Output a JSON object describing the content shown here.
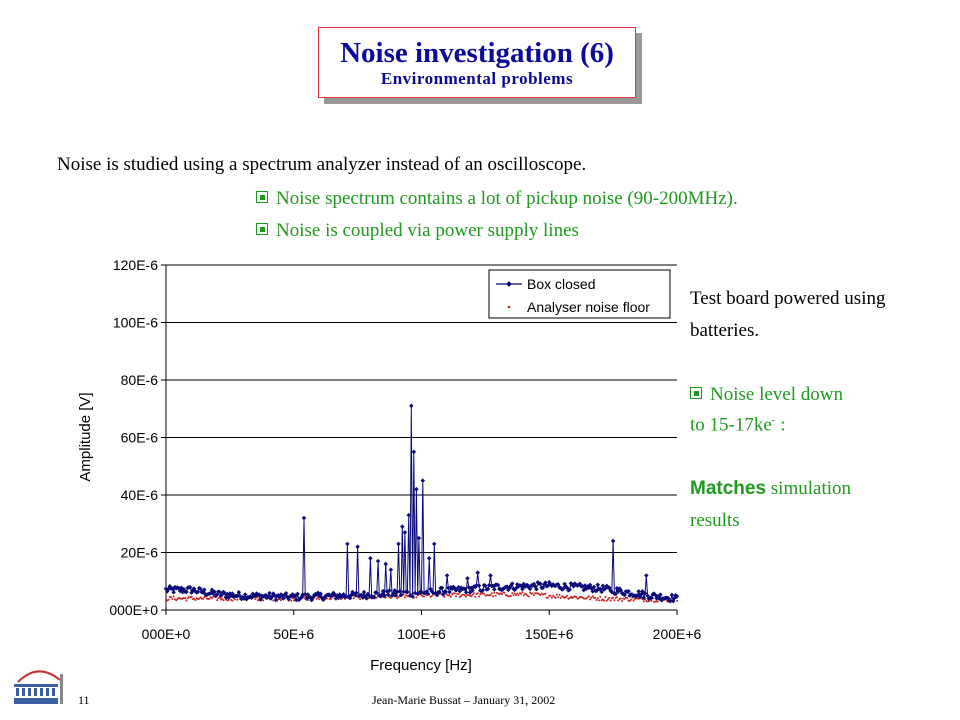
{
  "slide": {
    "title": "Noise investigation (6)",
    "subtitle": "Environmental problems",
    "intro": "Noise is studied using a spectrum analyzer instead of an oscilloscope.",
    "bullets": [
      "Noise spectrum contains a lot of pickup noise (90-200MHz).",
      "Noise is coupled via power supply lines"
    ],
    "side": {
      "line1": "Test board powered using",
      "line2": "batteries.",
      "bullet_line1": "Noise level down",
      "bullet_line2_prefix": "to  15-17ke",
      "bullet_line2_sup": "-",
      "bullet_line2_suffix": "  :",
      "matches_bold": "Matches",
      "matches_rest": " simulation",
      "results": "results"
    },
    "footer": {
      "page": "11",
      "text": "Jean-Marie Bussat – January 31, 2002"
    },
    "colors": {
      "title": "#0a0a9a",
      "title_border": "#e63333",
      "bullet": "#1e9a1e",
      "series1": "#0a0a7a",
      "series2": "#cc2222"
    }
  },
  "chart_data": {
    "type": "line",
    "xlabel": "Frequency [Hz]",
    "ylabel": "Amplitude [V]",
    "xlim": [
      0,
      200000000
    ],
    "ylim": [
      0,
      0.00012
    ],
    "xticks": [
      {
        "value": 0,
        "label": "000E+0"
      },
      {
        "value": 50000000,
        "label": "50E+6"
      },
      {
        "value": 100000000,
        "label": "100E+6"
      },
      {
        "value": 150000000,
        "label": "150E+6"
      },
      {
        "value": 200000000,
        "label": "200E+6"
      }
    ],
    "yticks": [
      {
        "value": 0,
        "label": "000E+0"
      },
      {
        "value": 2e-05,
        "label": "20E-6"
      },
      {
        "value": 4e-05,
        "label": "40E-6"
      },
      {
        "value": 6e-05,
        "label": "60E-6"
      },
      {
        "value": 8e-05,
        "label": "80E-6"
      },
      {
        "value": 0.0001,
        "label": "100E-6"
      },
      {
        "value": 0.00012,
        "label": "120E-6"
      }
    ],
    "grid": "horizontal",
    "legend_position": "top-right",
    "series": [
      {
        "name": "Box closed",
        "style": "line-markers",
        "peaks": [
          {
            "x": 54000000,
            "y": 3.2e-05
          },
          {
            "x": 71000000,
            "y": 2.3e-05
          },
          {
            "x": 75000000,
            "y": 2.2e-05
          },
          {
            "x": 80000000,
            "y": 1.8e-05
          },
          {
            "x": 83000000,
            "y": 1.7e-05
          },
          {
            "x": 86000000,
            "y": 1.6e-05
          },
          {
            "x": 88000000,
            "y": 1.4e-05
          },
          {
            "x": 91000000,
            "y": 2.3e-05
          },
          {
            "x": 92500000,
            "y": 2.9e-05
          },
          {
            "x": 93500000,
            "y": 2.7e-05
          },
          {
            "x": 95000000,
            "y": 3.3e-05
          },
          {
            "x": 96000000,
            "y": 7.1e-05
          },
          {
            "x": 97000000,
            "y": 5.5e-05
          },
          {
            "x": 97800000,
            "y": 4.2e-05
          },
          {
            "x": 99000000,
            "y": 2.5e-05
          },
          {
            "x": 100500000,
            "y": 4.5e-05
          },
          {
            "x": 103000000,
            "y": 1.8e-05
          },
          {
            "x": 105000000,
            "y": 2.3e-05
          },
          {
            "x": 110000000,
            "y": 1.2e-05
          },
          {
            "x": 118000000,
            "y": 1.1e-05
          },
          {
            "x": 122000000,
            "y": 1.3e-05
          },
          {
            "x": 127000000,
            "y": 1.2e-05
          },
          {
            "x": 175000000,
            "y": 2.4e-05
          },
          {
            "x": 188000000,
            "y": 1.2e-05
          }
        ],
        "baseline": [
          {
            "x": 0,
            "y": 7e-06
          },
          {
            "x": 10000000,
            "y": 7e-06
          },
          {
            "x": 20000000,
            "y": 5.5e-06
          },
          {
            "x": 30000000,
            "y": 5e-06
          },
          {
            "x": 50000000,
            "y": 4.5e-06
          },
          {
            "x": 70000000,
            "y": 5e-06
          },
          {
            "x": 100000000,
            "y": 6e-06
          },
          {
            "x": 130000000,
            "y": 8e-06
          },
          {
            "x": 150000000,
            "y": 8.5e-06
          },
          {
            "x": 170000000,
            "y": 7.5e-06
          },
          {
            "x": 190000000,
            "y": 5e-06
          },
          {
            "x": 200000000,
            "y": 4e-06
          }
        ]
      },
      {
        "name": "Analyser noise floor",
        "style": "markers",
        "baseline": [
          {
            "x": 0,
            "y": 4e-06
          },
          {
            "x": 50000000,
            "y": 4e-06
          },
          {
            "x": 100000000,
            "y": 5e-06
          },
          {
            "x": 140000000,
            "y": 5.5e-06
          },
          {
            "x": 170000000,
            "y": 4e-06
          },
          {
            "x": 200000000,
            "y": 3.5e-06
          }
        ]
      }
    ]
  }
}
